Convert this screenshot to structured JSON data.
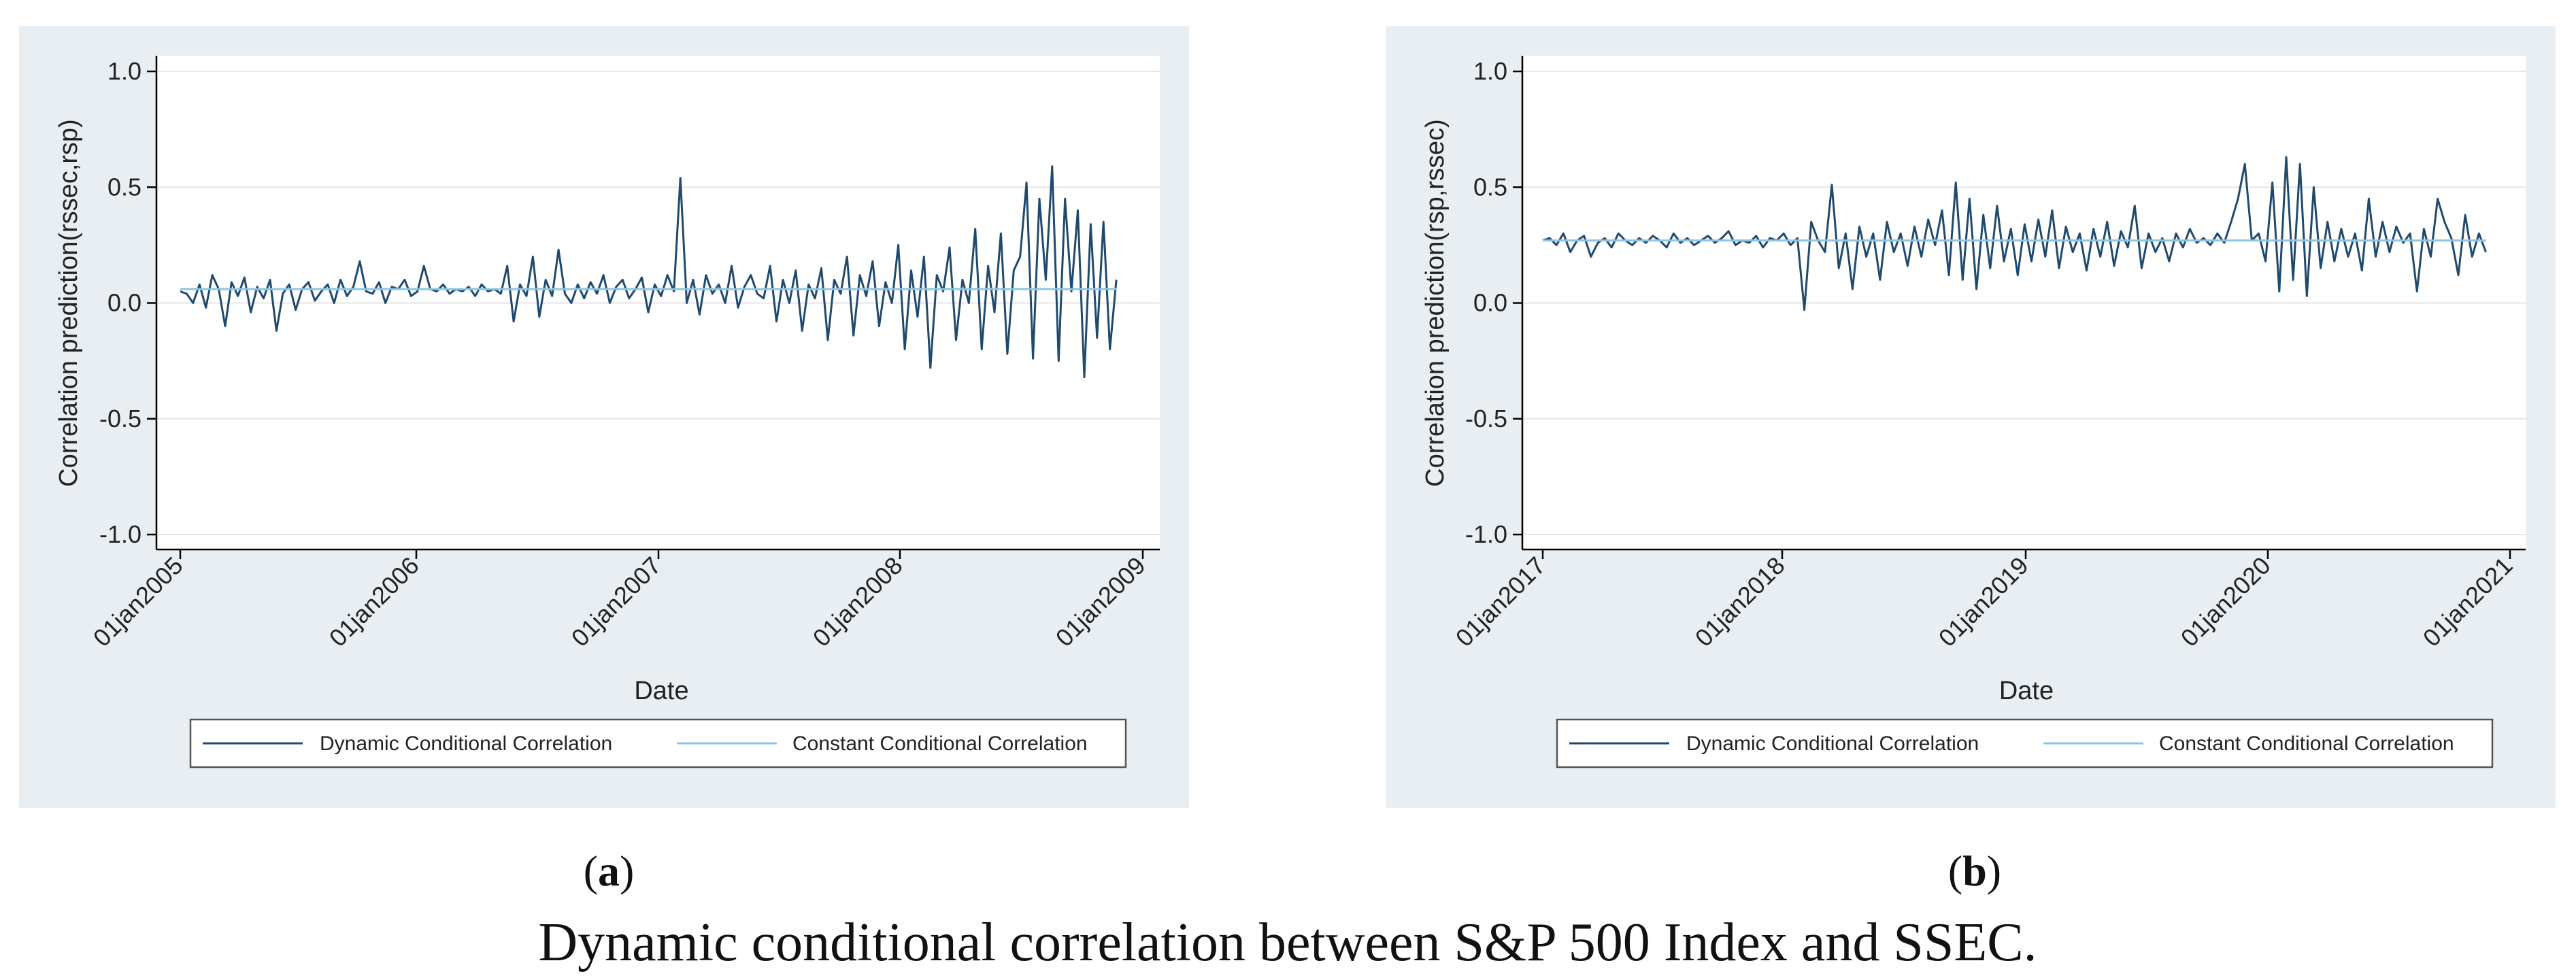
{
  "figure": {
    "caption": "Dynamic conditional correlation between S&P 500 Index and SSEC."
  },
  "chart_data": [
    {
      "type": "line",
      "panel_letter": "a",
      "ylabel": "Correlation prediction(rssec,rsp)",
      "xlabel": "Date",
      "ylim": [
        -1.0,
        1.0
      ],
      "yticks": [
        1.0,
        0.5,
        0.0,
        -0.5,
        -1.0
      ],
      "ytick_labels": [
        "1.0",
        "0.5",
        "0.0",
        "-0.5",
        "-1.0"
      ],
      "x_range": [
        2005.0,
        2009.0
      ],
      "xtick_labels": [
        "01jan2005",
        "01jan2006",
        "01jan2007",
        "01jan2008",
        "01jan2009"
      ],
      "grid": "horizontal",
      "legend": {
        "placement": "bottom",
        "entries": [
          "Dynamic Conditional Correlation",
          "Constant Conditional Correlation"
        ]
      },
      "series": [
        {
          "name": "Dynamic Conditional Correlation",
          "x_start": 2005.0,
          "x_end": 2008.89,
          "values": [
            0.05,
            0.04,
            0.0,
            0.08,
            -0.02,
            0.12,
            0.06,
            -0.1,
            0.09,
            0.03,
            0.11,
            -0.04,
            0.07,
            0.02,
            0.1,
            -0.12,
            0.04,
            0.08,
            -0.03,
            0.06,
            0.09,
            0.01,
            0.05,
            0.08,
            0.0,
            0.1,
            0.03,
            0.07,
            0.18,
            0.05,
            0.04,
            0.09,
            0.0,
            0.07,
            0.06,
            0.1,
            0.03,
            0.05,
            0.16,
            0.06,
            0.05,
            0.08,
            0.04,
            0.06,
            0.05,
            0.07,
            0.03,
            0.08,
            0.05,
            0.06,
            0.04,
            0.16,
            -0.08,
            0.08,
            0.03,
            0.2,
            -0.06,
            0.1,
            0.03,
            0.23,
            0.04,
            0.0,
            0.08,
            0.02,
            0.09,
            0.04,
            0.12,
            0.0,
            0.07,
            0.1,
            0.02,
            0.06,
            0.11,
            -0.04,
            0.08,
            0.03,
            0.12,
            0.05,
            0.54,
            0.0,
            0.1,
            -0.05,
            0.12,
            0.04,
            0.08,
            0.0,
            0.16,
            -0.02,
            0.07,
            0.12,
            0.04,
            0.02,
            0.16,
            -0.08,
            0.1,
            0.0,
            0.14,
            -0.12,
            0.08,
            0.02,
            0.15,
            -0.16,
            0.1,
            0.04,
            0.2,
            -0.14,
            0.12,
            0.03,
            0.18,
            -0.1,
            0.09,
            0.0,
            0.25,
            -0.2,
            0.14,
            -0.06,
            0.2,
            -0.28,
            0.12,
            0.05,
            0.24,
            -0.16,
            0.1,
            0.0,
            0.32,
            -0.2,
            0.16,
            -0.04,
            0.3,
            -0.22,
            0.14,
            0.2,
            0.52,
            -0.24,
            0.45,
            0.1,
            0.59,
            -0.25,
            0.45,
            0.05,
            0.4,
            -0.32,
            0.34,
            -0.15,
            0.35,
            -0.2,
            0.1
          ]
        },
        {
          "name": "Constant Conditional Correlation",
          "constant": 0.06
        }
      ]
    },
    {
      "type": "line",
      "panel_letter": "b",
      "ylabel": "Correlation prediction(rsp,rssec)",
      "xlabel": "Date",
      "ylim": [
        -1.0,
        1.0
      ],
      "yticks": [
        1.0,
        0.5,
        0.0,
        -0.5,
        -1.0
      ],
      "ytick_labels": [
        "1.0",
        "0.5",
        "0.0",
        "-0.5",
        "-1.0"
      ],
      "x_range": [
        2017.0,
        2021.0
      ],
      "xtick_labels": [
        "01jan2017",
        "01jan2018",
        "01jan2019",
        "01jan2020",
        "01jan2021"
      ],
      "grid": "horizontal",
      "legend": {
        "placement": "bottom",
        "entries": [
          "Dynamic Conditional Correlation",
          "Constant Conditional Correlation"
        ]
      },
      "series": [
        {
          "name": "Dynamic Conditional Correlation",
          "x_start": 2017.0,
          "x_end": 2020.9,
          "values": [
            0.27,
            0.28,
            0.25,
            0.3,
            0.22,
            0.27,
            0.29,
            0.2,
            0.26,
            0.28,
            0.24,
            0.3,
            0.27,
            0.25,
            0.28,
            0.26,
            0.29,
            0.27,
            0.24,
            0.3,
            0.26,
            0.28,
            0.25,
            0.27,
            0.29,
            0.26,
            0.28,
            0.31,
            0.25,
            0.27,
            0.26,
            0.29,
            0.24,
            0.28,
            0.27,
            0.3,
            0.25,
            0.28,
            -0.03,
            0.35,
            0.27,
            0.22,
            0.51,
            0.15,
            0.3,
            0.06,
            0.33,
            0.2,
            0.3,
            0.1,
            0.35,
            0.22,
            0.3,
            0.16,
            0.33,
            0.2,
            0.36,
            0.25,
            0.4,
            0.12,
            0.52,
            0.1,
            0.45,
            0.06,
            0.38,
            0.15,
            0.42,
            0.18,
            0.32,
            0.12,
            0.34,
            0.18,
            0.36,
            0.2,
            0.4,
            0.15,
            0.33,
            0.22,
            0.3,
            0.14,
            0.32,
            0.2,
            0.35,
            0.16,
            0.31,
            0.24,
            0.42,
            0.15,
            0.3,
            0.22,
            0.28,
            0.18,
            0.3,
            0.24,
            0.32,
            0.26,
            0.28,
            0.25,
            0.3,
            0.26,
            0.35,
            0.45,
            0.6,
            0.27,
            0.3,
            0.18,
            0.52,
            0.05,
            0.63,
            0.1,
            0.6,
            0.03,
            0.5,
            0.15,
            0.35,
            0.18,
            0.32,
            0.2,
            0.3,
            0.14,
            0.45,
            0.2,
            0.35,
            0.22,
            0.33,
            0.26,
            0.3,
            0.05,
            0.32,
            0.2,
            0.45,
            0.35,
            0.28,
            0.12,
            0.38,
            0.2,
            0.3,
            0.22
          ]
        },
        {
          "name": "Constant Conditional Correlation",
          "constant": 0.27
        }
      ]
    }
  ]
}
